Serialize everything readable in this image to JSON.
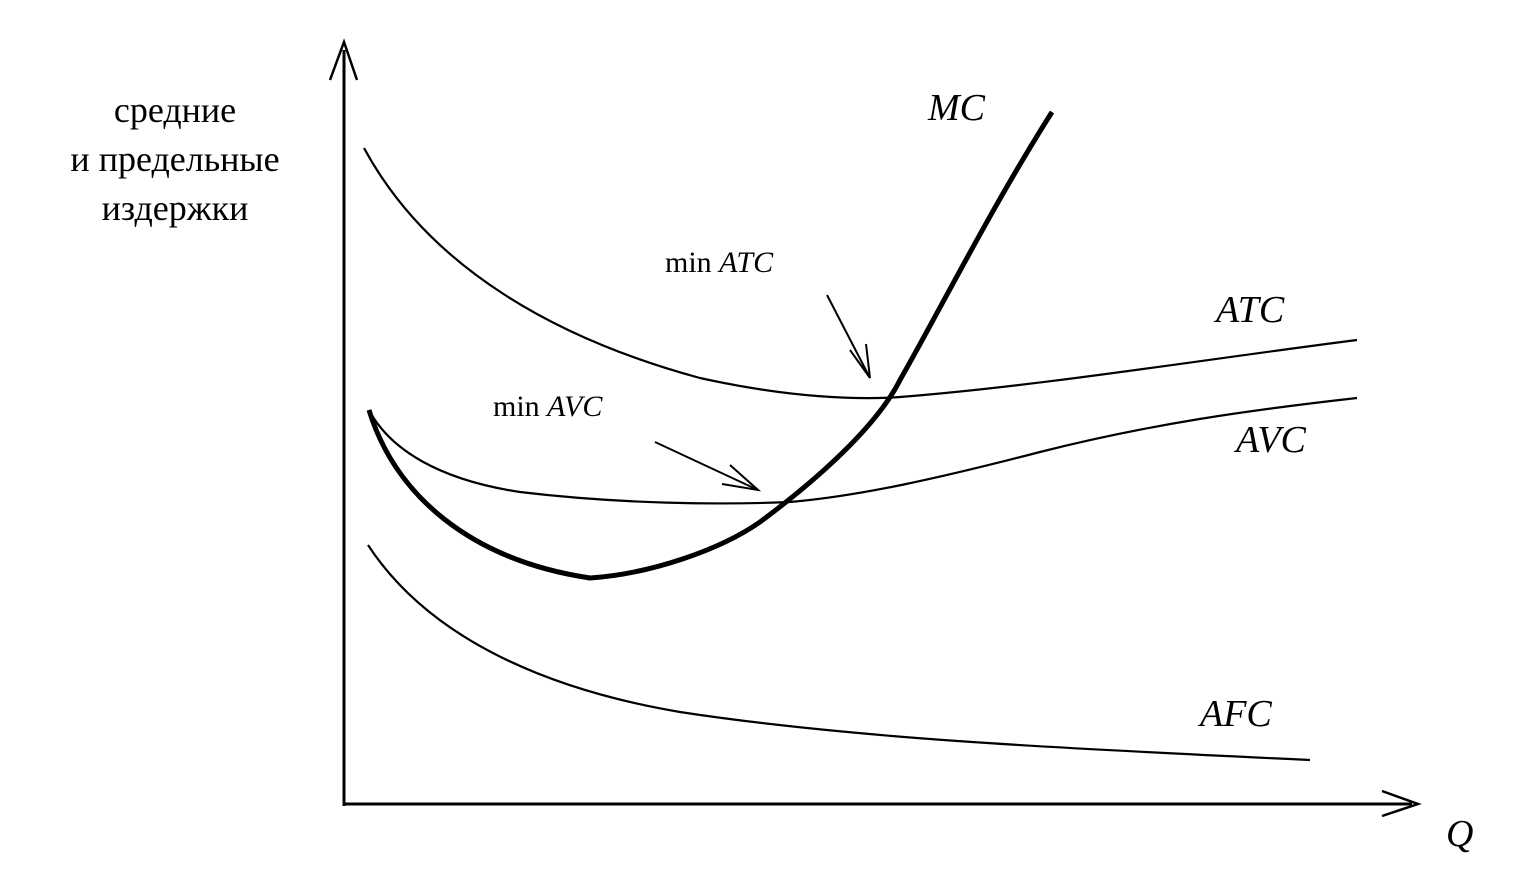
{
  "diagram": {
    "y_axis_label_lines": [
      "средние",
      "и предельные",
      "издержки"
    ],
    "x_axis_label": "Q",
    "curves": [
      {
        "name": "ATC",
        "label": "ATC"
      },
      {
        "name": "AVC",
        "label": "AVC"
      },
      {
        "name": "AFC",
        "label": "AFC"
      },
      {
        "name": "MC",
        "label": "MC"
      }
    ],
    "annotations": [
      {
        "name": "min-atc",
        "prefix": "min ",
        "term": "ATC"
      },
      {
        "name": "min-avc",
        "prefix": "min ",
        "term": "AVC"
      }
    ],
    "colors": {
      "ink": "#000000",
      "background": "#ffffff"
    }
  }
}
